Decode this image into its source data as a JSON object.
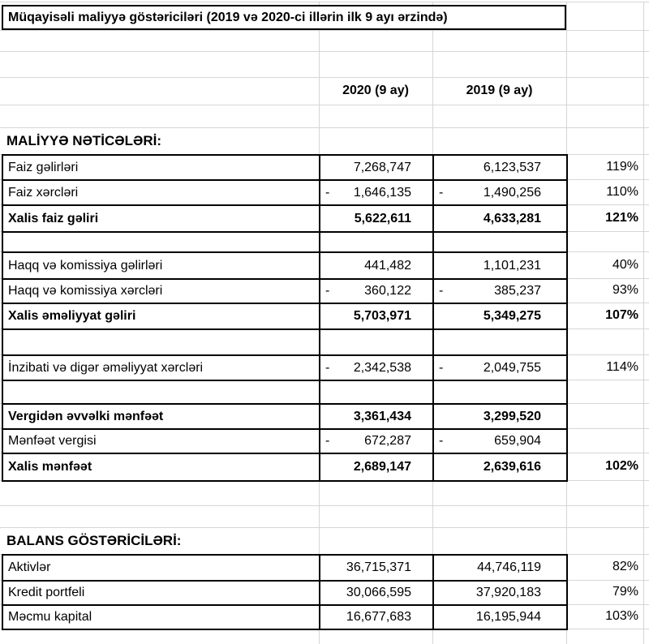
{
  "title": "Müqayisəli maliyyə göstəriciləri (2019 və 2020-ci illərin ilk 9 ayı ərzində)",
  "header": {
    "col_2020": "2020 (9 ay)",
    "col_2019": "2019 (9 ay)"
  },
  "sections": [
    {
      "header": "MALİYYƏ NƏTİCƏLƏRİ:",
      "rows": [
        {
          "label": "Faiz gəlirləri",
          "neg2020": "",
          "v2020": "7,268,747",
          "neg2019": "",
          "v2019": "6,123,537",
          "pct": "119%",
          "bold": false
        },
        {
          "label": "Faiz xərcləri",
          "neg2020": "-",
          "v2020": "1,646,135",
          "neg2019": "-",
          "v2019": "1,490,256",
          "pct": "110%",
          "bold": false
        },
        {
          "label": "Xalis faiz gəliri",
          "neg2020": "",
          "v2020": "5,622,611",
          "neg2019": "",
          "v2019": "4,633,281",
          "pct": "121%",
          "bold": true
        },
        {
          "blank": true
        },
        {
          "label": "Haqq və komissiya gəlirləri",
          "neg2020": "",
          "v2020": "441,482",
          "neg2019": "",
          "v2019": "1,101,231",
          "pct": "40%",
          "bold": false
        },
        {
          "label": "Haqq və komissiya xərcləri",
          "neg2020": "-",
          "v2020": "360,122",
          "neg2019": "-",
          "v2019": "385,237",
          "pct": "93%",
          "bold": false
        },
        {
          "label": "Xalis əməliyyat gəliri",
          "neg2020": "",
          "v2020": "5,703,971",
          "neg2019": "",
          "v2019": "5,349,275",
          "pct": "107%",
          "bold": true
        },
        {
          "blank": true
        },
        {
          "label": "İnzibati və digər əməliyyat xərcləri",
          "neg2020": "-",
          "v2020": "2,342,538",
          "neg2019": "-",
          "v2019": "2,049,755",
          "pct": "114%",
          "bold": false
        },
        {
          "blank": true
        },
        {
          "label": "Vergidən əvvəlki mənfəət",
          "neg2020": "",
          "v2020": "3,361,434",
          "neg2019": "",
          "v2019": "3,299,520",
          "pct": "",
          "bold": true
        },
        {
          "label": "Mənfəət vergisi",
          "neg2020": "-",
          "v2020": "672,287",
          "neg2019": "-",
          "v2019": "659,904",
          "pct": "",
          "bold": false
        },
        {
          "label": "Xalis mənfəət",
          "neg2020": "",
          "v2020": "2,689,147",
          "neg2019": "",
          "v2019": "2,639,616",
          "pct": "102%",
          "bold": true
        }
      ]
    },
    {
      "header": "BALANS GÖSTƏRİCİLƏRİ:",
      "rows": [
        {
          "label": "Aktivlər",
          "neg2020": "",
          "v2020": "36,715,371",
          "neg2019": "",
          "v2019": "44,746,119",
          "pct": "82%",
          "bold": false
        },
        {
          "label": "Kredit portfeli",
          "neg2020": "",
          "v2020": "30,066,595",
          "neg2019": "",
          "v2019": "37,920,183",
          "pct": "79%",
          "bold": false
        },
        {
          "label": "Məcmu kapital",
          "neg2020": "",
          "v2020": "16,677,683",
          "neg2019": "",
          "v2019": "16,195,944",
          "pct": "103%",
          "bold": false
        }
      ]
    }
  ],
  "colors": {
    "background": "#ffffff",
    "gridline": "#d6d6d6",
    "table_border": "#000000",
    "text": "#000000"
  }
}
